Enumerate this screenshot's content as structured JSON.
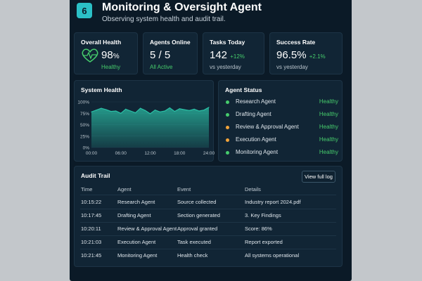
{
  "header": {
    "step_number": "6",
    "title": "Monitoring & Oversight Agent",
    "subtitle": "Observing system health and audit trail."
  },
  "kpis": {
    "overall_health": {
      "label": "Overall Health",
      "value": "98",
      "unit": "%",
      "sub": "Healthy"
    },
    "agents_online": {
      "label": "Agents Online",
      "value": "5 / 5",
      "sub": "All Active"
    },
    "tasks_today": {
      "label": "Tasks Today",
      "value": "142",
      "delta": "+12%",
      "sub": "vs yesterday"
    },
    "success_rate": {
      "label": "Success Rate",
      "value": "96.5%",
      "delta": "+2.1%",
      "sub": "vs yesterday"
    }
  },
  "system_health": {
    "title": "System Health",
    "y_ticks": [
      "100%",
      "75%",
      "50%",
      "25%",
      "0%"
    ],
    "x_ticks": [
      "00:00",
      "06:00",
      "12:00",
      "18:00",
      "24:00"
    ]
  },
  "chart_data": {
    "type": "area",
    "title": "System Health",
    "x": [
      0,
      1,
      2,
      3,
      4,
      5,
      6,
      7,
      8,
      9,
      10,
      11,
      12,
      13,
      14,
      15,
      16,
      17,
      18,
      19,
      20,
      21,
      22,
      23,
      24
    ],
    "values": [
      78,
      82,
      86,
      83,
      79,
      80,
      75,
      84,
      80,
      76,
      86,
      81,
      74,
      82,
      78,
      80,
      87,
      79,
      85,
      83,
      81,
      84,
      80,
      82,
      88
    ],
    "ylim": [
      0,
      100
    ],
    "xlim": [
      0,
      24
    ],
    "color": "#2bc0a6"
  },
  "agent_status": {
    "title": "Agent Status",
    "agents": [
      {
        "name": "Research Agent",
        "status": "Healthy",
        "dot": "#46cc6c"
      },
      {
        "name": "Drafting Agent",
        "status": "Healthy",
        "dot": "#46cc6c"
      },
      {
        "name": "Review & Approval Agent",
        "status": "Healthy",
        "dot": "#f2a43a"
      },
      {
        "name": "Execution Agent",
        "status": "Healthy",
        "dot": "#f2a43a"
      },
      {
        "name": "Monitoring Agent",
        "status": "Healthy",
        "dot": "#46cc6c"
      }
    ]
  },
  "audit_trail": {
    "title": "Audit Trail",
    "button": "View full log",
    "columns": [
      "Time",
      "Agent",
      "Event",
      "Details"
    ],
    "rows": [
      [
        "10:15:22",
        "Research Agent",
        "Source collected",
        "Industry report 2024.pdf"
      ],
      [
        "10:17:45",
        "Drafting Agent",
        "Section generated",
        "3. Key Findings"
      ],
      [
        "10:20:11",
        "Review & Approval Agent",
        "Approval granted",
        "Score: 86%"
      ],
      [
        "10:21:03",
        "Execution Agent",
        "Task executed",
        "Report exported"
      ],
      [
        "10:21:45",
        "Monitoring Agent",
        "Health check",
        "All systems operational"
      ]
    ]
  },
  "colors": {
    "background": "#0b1a27",
    "card": "#112535",
    "accent": "#2bc0c6",
    "healthy": "#46cc6c",
    "warning": "#f2a43a"
  }
}
